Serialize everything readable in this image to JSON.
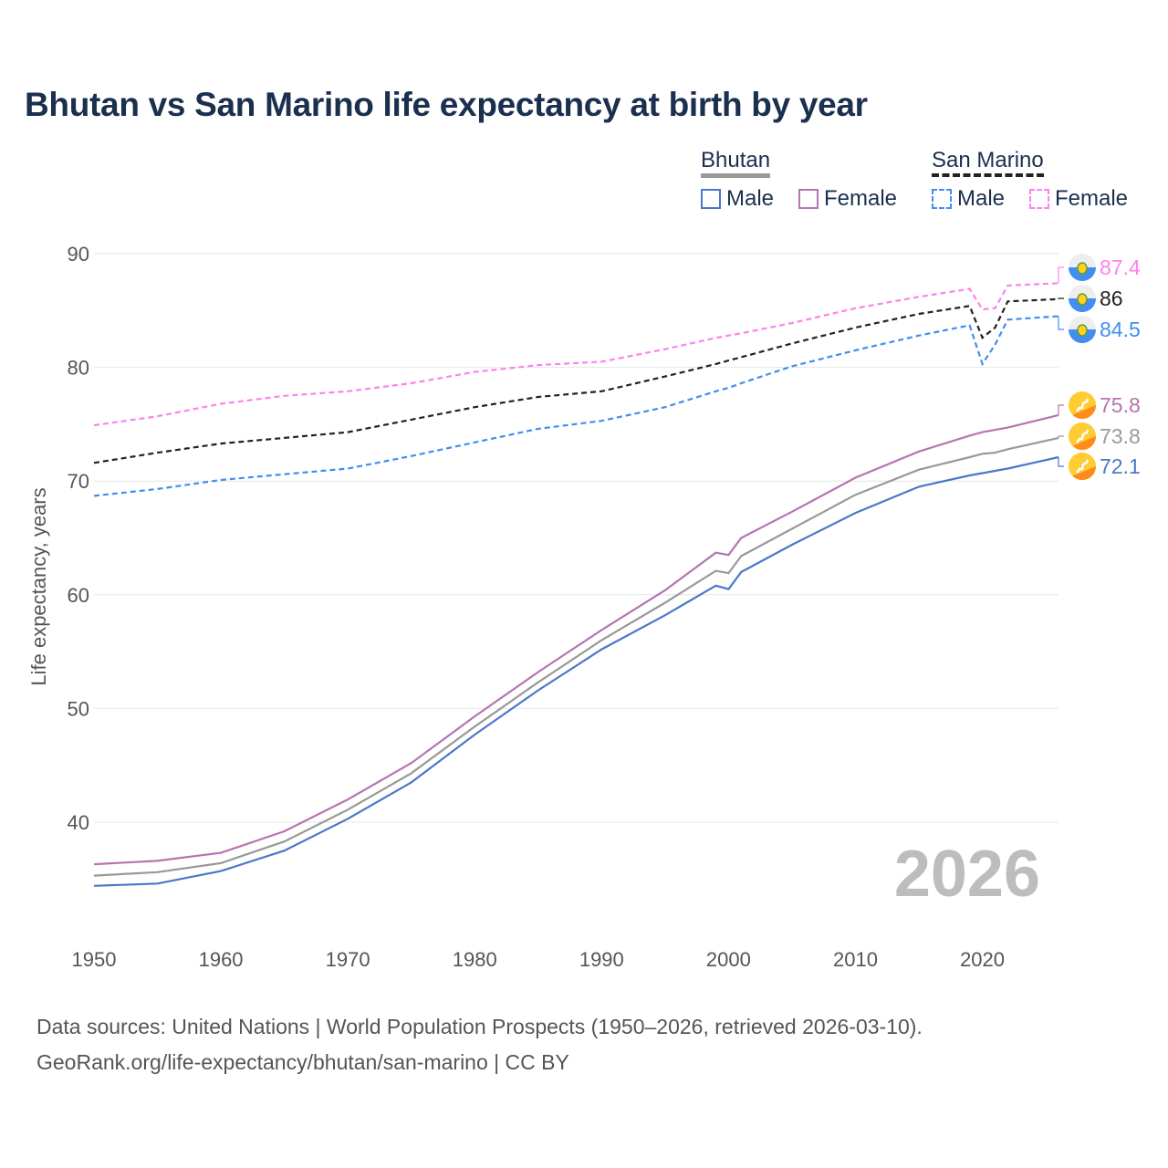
{
  "title": "Bhutan vs San Marino life expectancy at birth by year",
  "legend": {
    "bhutan": {
      "label": "Bhutan",
      "male": "Male",
      "female": "Female"
    },
    "san_marino": {
      "label": "San Marino",
      "male": "Male",
      "female": "Female"
    }
  },
  "year_label": "2026",
  "source": {
    "line1": "Data sources: United Nations | World Population Prospects (1950–2026, retrieved 2026-03-10).",
    "line2": "GeoRank.org/life-expectancy/bhutan/san-marino | CC BY"
  },
  "chart_data": {
    "type": "line",
    "title": "Bhutan vs San Marino life expectancy at birth by year",
    "xlabel": "",
    "ylabel": "Life expectancy, years",
    "xlim": [
      1950,
      2026
    ],
    "ylim": [
      31,
      92
    ],
    "xticks": [
      1950,
      1960,
      1970,
      1980,
      1990,
      2000,
      2010,
      2020
    ],
    "yticks": [
      40,
      50,
      60,
      70,
      80,
      90
    ],
    "grid": true,
    "legend_position": "top-right",
    "x": [
      1950,
      1955,
      1960,
      1965,
      1970,
      1975,
      1980,
      1985,
      1990,
      1995,
      1999,
      2000,
      2001,
      2005,
      2010,
      2015,
      2019,
      2020,
      2021,
      2022,
      2026
    ],
    "series": [
      {
        "name": "San Marino Female",
        "color": "#ff80f0",
        "dash": true,
        "end_label": "87.4",
        "flag": "san-marino",
        "values": [
          74.9,
          75.7,
          76.8,
          77.5,
          77.9,
          78.6,
          79.6,
          80.2,
          80.5,
          81.6,
          82.6,
          82.8,
          83.0,
          83.9,
          85.2,
          86.2,
          86.9,
          85.1,
          85.2,
          87.2,
          87.4
        ]
      },
      {
        "name": "San Marino",
        "color": "#222222",
        "dash": true,
        "end_label": "86",
        "flag": "san-marino",
        "values": [
          71.6,
          72.5,
          73.3,
          73.8,
          74.3,
          75.4,
          76.5,
          77.4,
          77.9,
          79.2,
          80.3,
          80.6,
          80.9,
          82.1,
          83.5,
          84.7,
          85.4,
          82.6,
          83.5,
          85.8,
          86.0
        ]
      },
      {
        "name": "San Marino Male",
        "color": "#3f8ef0",
        "dash": true,
        "end_label": "84.5",
        "flag": "san-marino",
        "values": [
          68.7,
          69.3,
          70.1,
          70.6,
          71.1,
          72.2,
          73.4,
          74.6,
          75.3,
          76.5,
          77.9,
          78.2,
          78.6,
          80.1,
          81.5,
          82.8,
          83.7,
          80.3,
          82.0,
          84.2,
          84.5
        ]
      },
      {
        "name": "Bhutan Female",
        "color": "#b674b0",
        "dash": false,
        "end_label": "75.8",
        "flag": "bhutan",
        "values": [
          36.3,
          36.6,
          37.3,
          39.2,
          42.0,
          45.2,
          49.3,
          53.2,
          56.9,
          60.4,
          63.7,
          63.5,
          65.0,
          67.3,
          70.3,
          72.6,
          74.0,
          74.3,
          74.5,
          74.7,
          75.8
        ]
      },
      {
        "name": "Bhutan",
        "color": "#999999",
        "dash": false,
        "end_label": "73.8",
        "flag": "bhutan",
        "values": [
          35.3,
          35.6,
          36.4,
          38.3,
          41.1,
          44.3,
          48.4,
          52.3,
          56.0,
          59.3,
          62.1,
          61.9,
          63.4,
          65.8,
          68.8,
          71.0,
          72.1,
          72.4,
          72.5,
          72.8,
          73.8
        ]
      },
      {
        "name": "Bhutan Male",
        "color": "#4a78c8",
        "dash": false,
        "end_label": "72.1",
        "flag": "bhutan",
        "values": [
          34.4,
          34.6,
          35.7,
          37.5,
          40.3,
          43.5,
          47.7,
          51.6,
          55.2,
          58.2,
          60.8,
          60.5,
          62.0,
          64.4,
          67.2,
          69.5,
          70.5,
          70.7,
          70.9,
          71.1,
          72.1
        ]
      }
    ]
  }
}
